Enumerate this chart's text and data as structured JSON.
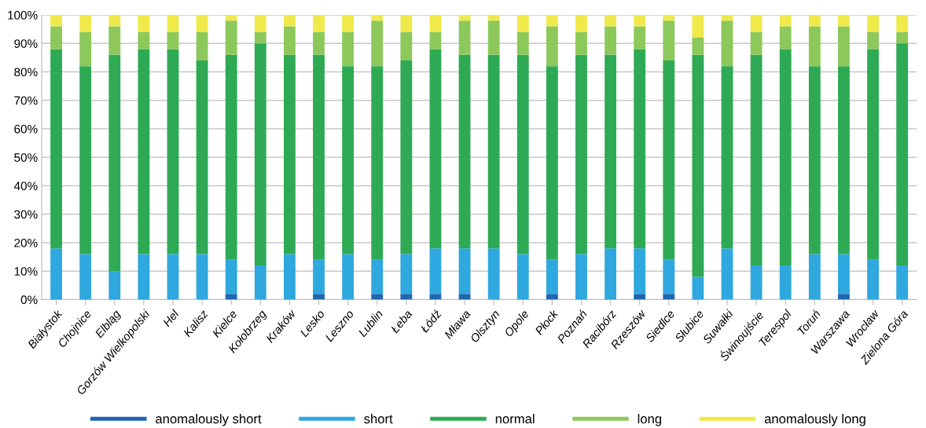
{
  "chart_data": {
    "type": "bar",
    "stacked": true,
    "categories": [
      "Białystok",
      "Chojnice",
      "Elbląg",
      "Gorzów Wielkopolski",
      "Hel",
      "Kalisz",
      "Kielce",
      "Kołobrzeg",
      "Kraków",
      "Lesko",
      "Leszno",
      "Lublin",
      "Łeba",
      "Łódź",
      "Mława",
      "Olsztyn",
      "Opole",
      "Płock",
      "Poznań",
      "Racibórz",
      "Rzeszów",
      "Siedlce",
      "Słubice",
      "Suwałki",
      "Świnoujście",
      "Terespol",
      "Toruń",
      "Warszawa",
      "Wrocław",
      "Zielona Góra"
    ],
    "series": [
      {
        "name": "anomalously short",
        "color": "#1f66b0",
        "values": [
          0,
          0,
          0,
          0,
          0,
          0,
          2,
          0,
          0,
          2,
          0,
          2,
          2,
          2,
          2,
          0,
          0,
          2,
          0,
          0,
          2,
          2,
          0,
          0,
          0,
          0,
          0,
          2,
          0,
          0
        ]
      },
      {
        "name": "short",
        "color": "#2ea8de",
        "values": [
          18,
          16,
          10,
          16,
          16,
          16,
          12,
          12,
          16,
          12,
          16,
          12,
          14,
          16,
          16,
          18,
          16,
          12,
          16,
          18,
          16,
          12,
          8,
          18,
          12,
          12,
          16,
          14,
          14,
          12
        ]
      },
      {
        "name": "normal",
        "color": "#2eaa55",
        "values": [
          70,
          66,
          76,
          72,
          72,
          68,
          72,
          78,
          70,
          72,
          66,
          68,
          68,
          70,
          68,
          68,
          70,
          68,
          70,
          68,
          70,
          70,
          78,
          64,
          74,
          76,
          66,
          66,
          74,
          78
        ]
      },
      {
        "name": "long",
        "color": "#8dc85a",
        "values": [
          8,
          12,
          10,
          6,
          6,
          10,
          12,
          4,
          10,
          8,
          12,
          16,
          10,
          6,
          12,
          12,
          8,
          14,
          8,
          10,
          8,
          14,
          6,
          16,
          8,
          8,
          14,
          14,
          6,
          4
        ]
      },
      {
        "name": "anomalously long",
        "color": "#f0e94a",
        "values": [
          4,
          6,
          4,
          6,
          6,
          6,
          2,
          6,
          4,
          6,
          6,
          2,
          6,
          6,
          2,
          2,
          6,
          4,
          6,
          4,
          4,
          2,
          8,
          2,
          6,
          4,
          4,
          4,
          6,
          6
        ]
      }
    ],
    "ylim": [
      0,
      100
    ],
    "yticks": [
      {
        "value": 0,
        "label": "0%"
      },
      {
        "value": 10,
        "label": "10%"
      },
      {
        "value": 20,
        "label": "20%"
      },
      {
        "value": 30,
        "label": "30%"
      },
      {
        "value": 40,
        "label": "40%"
      },
      {
        "value": 50,
        "label": "50%"
      },
      {
        "value": 60,
        "label": "60%"
      },
      {
        "value": 70,
        "label": "70%"
      },
      {
        "value": 80,
        "label": "80%"
      },
      {
        "value": 90,
        "label": "90%"
      },
      {
        "value": 100,
        "label": "100%"
      }
    ],
    "grid": "y",
    "legend": "bottom"
  }
}
